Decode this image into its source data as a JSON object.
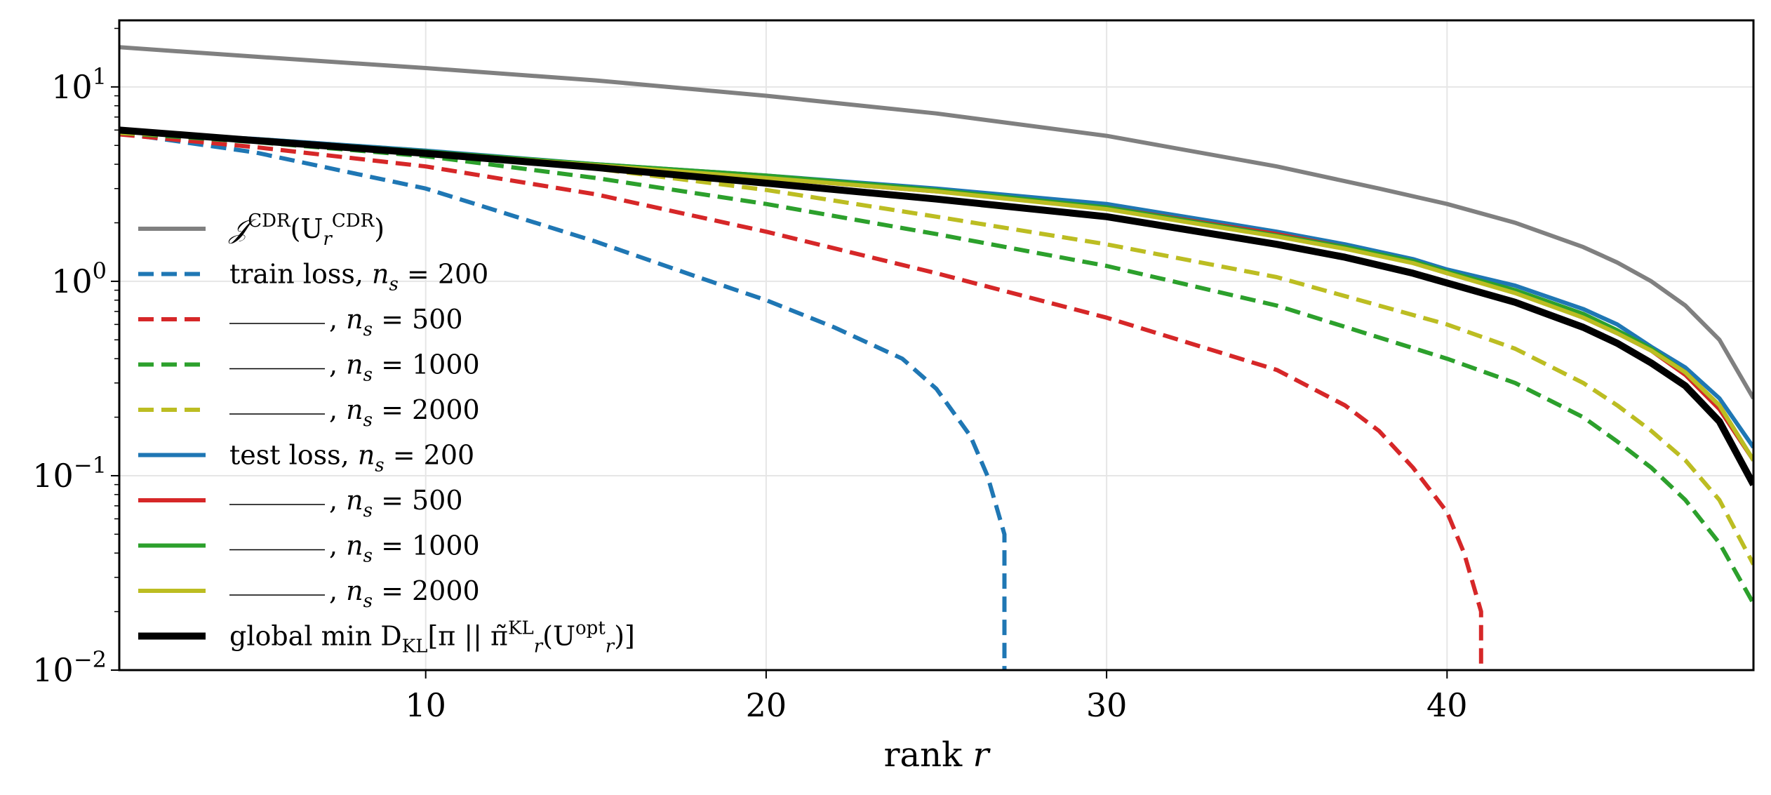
{
  "chart_data": {
    "type": "line",
    "title": "",
    "xlabel": "rank r",
    "ylabel": "",
    "y_scale": "log",
    "xlim": [
      1,
      49
    ],
    "ylim": [
      0.01,
      22
    ],
    "grid": true,
    "legend_position": "left",
    "x_ticks": [
      10,
      20,
      30,
      40
    ],
    "y_ticks": [
      {
        "value": 0.01,
        "base": "10",
        "exp": "−2"
      },
      {
        "value": 0.1,
        "base": "10",
        "exp": "−1"
      },
      {
        "value": 1,
        "base": "10",
        "exp": "0"
      },
      {
        "value": 10,
        "base": "10",
        "exp": "1"
      }
    ],
    "series": [
      {
        "name": "J^CDR(U_r^CDR)",
        "label_parts": [
          "𝒥",
          "CDR",
          "(U",
          "r",
          "CDR",
          ")"
        ],
        "color": "#808080",
        "style": "solid",
        "x": [
          1,
          5,
          10,
          15,
          20,
          25,
          30,
          35,
          38,
          40,
          42,
          44,
          45,
          46,
          47,
          48,
          49
        ],
        "y": [
          16,
          14.3,
          12.5,
          10.8,
          9.0,
          7.3,
          5.6,
          3.9,
          3.0,
          2.5,
          2.0,
          1.5,
          1.25,
          1.0,
          0.75,
          0.5,
          0.25
        ]
      },
      {
        "name": "train loss, n_s = 200",
        "color": "#1f77b4",
        "style": "dashed",
        "x": [
          1,
          5,
          10,
          15,
          18,
          20,
          22,
          24,
          25,
          26,
          26.5,
          27,
          27,
          27
        ],
        "y": [
          5.8,
          4.6,
          3.0,
          1.6,
          1.05,
          0.8,
          0.58,
          0.4,
          0.28,
          0.16,
          0.1,
          0.05,
          0.02,
          0.0095
        ]
      },
      {
        "name": "—, n_s = 500",
        "color": "#d62728",
        "style": "dashed",
        "x": [
          1,
          5,
          10,
          15,
          20,
          25,
          30,
          35,
          37,
          38,
          39,
          40,
          40.5,
          41,
          41,
          41
        ],
        "y": [
          5.7,
          4.9,
          3.9,
          2.8,
          1.8,
          1.1,
          0.65,
          0.35,
          0.23,
          0.17,
          0.11,
          0.065,
          0.04,
          0.02,
          0.012,
          0.0095
        ]
      },
      {
        "name": "—, n_s = 1000",
        "color": "#2ca02c",
        "style": "dashed",
        "x": [
          1,
          5,
          10,
          15,
          20,
          25,
          30,
          35,
          40,
          42,
          44,
          45,
          46,
          47,
          48,
          49
        ],
        "y": [
          5.8,
          5.2,
          4.4,
          3.4,
          2.5,
          1.75,
          1.2,
          0.75,
          0.4,
          0.3,
          0.2,
          0.15,
          0.11,
          0.075,
          0.045,
          0.022
        ]
      },
      {
        "name": "—, n_s = 2000",
        "color": "#bcbd22",
        "style": "dashed",
        "x": [
          1,
          5,
          10,
          15,
          20,
          25,
          30,
          35,
          40,
          42,
          44,
          45,
          46,
          47,
          48,
          49
        ],
        "y": [
          5.8,
          5.4,
          4.7,
          3.8,
          2.95,
          2.15,
          1.55,
          1.05,
          0.6,
          0.45,
          0.3,
          0.23,
          0.17,
          0.12,
          0.075,
          0.035
        ]
      },
      {
        "name": "test loss, n_s = 200",
        "color": "#1f77b4",
        "style": "solid",
        "x": [
          1,
          5,
          10,
          15,
          20,
          25,
          30,
          35,
          37,
          39,
          40,
          42,
          44,
          45,
          46,
          47,
          48,
          49
        ],
        "y": [
          5.9,
          5.4,
          4.7,
          4.0,
          3.5,
          3.0,
          2.5,
          1.8,
          1.55,
          1.3,
          1.15,
          0.95,
          0.72,
          0.6,
          0.46,
          0.36,
          0.25,
          0.14
        ]
      },
      {
        "name": "—, n_s = 500",
        "color": "#d62728",
        "style": "solid",
        "x": [
          1,
          5,
          10,
          15,
          20,
          25,
          30,
          35,
          37,
          39,
          40,
          42,
          44,
          45,
          46,
          47,
          48,
          49
        ],
        "y": [
          5.9,
          5.3,
          4.6,
          3.95,
          3.4,
          2.9,
          2.4,
          1.75,
          1.5,
          1.25,
          1.1,
          0.88,
          0.65,
          0.54,
          0.44,
          0.33,
          0.22,
          0.12
        ]
      },
      {
        "name": "—, n_s = 1000",
        "color": "#2ca02c",
        "style": "solid",
        "x": [
          1,
          5,
          10,
          15,
          20,
          25,
          30,
          35,
          37,
          39,
          40,
          42,
          44,
          45,
          46,
          47,
          48,
          49
        ],
        "y": [
          5.9,
          5.35,
          4.65,
          4.0,
          3.5,
          2.95,
          2.4,
          1.72,
          1.5,
          1.27,
          1.12,
          0.9,
          0.68,
          0.56,
          0.45,
          0.34,
          0.23,
          0.12
        ]
      },
      {
        "name": "—, n_s = 2000",
        "color": "#bcbd22",
        "style": "solid",
        "x": [
          1,
          5,
          10,
          15,
          20,
          25,
          30,
          35,
          37,
          39,
          40,
          42,
          44,
          45,
          46,
          47,
          48,
          49
        ],
        "y": [
          5.9,
          5.3,
          4.6,
          3.95,
          3.4,
          2.9,
          2.35,
          1.7,
          1.47,
          1.24,
          1.1,
          0.87,
          0.65,
          0.54,
          0.44,
          0.34,
          0.23,
          0.12
        ]
      },
      {
        "name": "global min D_KL[π || π̃_r^KL(U_r^opt)]",
        "color": "#000000",
        "style": "solid",
        "bold": true,
        "x": [
          1,
          5,
          10,
          15,
          20,
          25,
          30,
          35,
          37,
          39,
          40,
          42,
          44,
          45,
          46,
          47,
          48,
          49
        ],
        "y": [
          6.0,
          5.3,
          4.55,
          3.85,
          3.2,
          2.65,
          2.15,
          1.55,
          1.33,
          1.1,
          0.98,
          0.78,
          0.58,
          0.48,
          0.38,
          0.29,
          0.19,
          0.09
        ]
      }
    ],
    "legend": [
      {
        "prefix": "",
        "text": "𝒥",
        "sup": "CDR",
        "mid": "(U",
        "sub": "r",
        "sup2": "CDR",
        "tail": ")"
      },
      {
        "text": "train loss, n",
        "sub": "s",
        "tail": " = 200"
      },
      {
        "text": ", n",
        "sub": "s",
        "tail": " = 500",
        "dash_prefix": true
      },
      {
        "text": ", n",
        "sub": "s",
        "tail": " = 1000",
        "dash_prefix": true
      },
      {
        "text": ", n",
        "sub": "s",
        "tail": " = 2000",
        "dash_prefix": true
      },
      {
        "text": "test loss, n",
        "sub": "s",
        "tail": " = 200"
      },
      {
        "text": ", n",
        "sub": "s",
        "tail": " = 500",
        "dash_prefix": true
      },
      {
        "text": ", n",
        "sub": "s",
        "tail": " = 1000",
        "dash_prefix": true
      },
      {
        "text": ", n",
        "sub": "s",
        "tail": " = 2000",
        "dash_prefix": true
      },
      {
        "text": "global min D",
        "sub": "KL",
        "tail": "[π || π̃",
        "sup": "KL",
        "sub2": "r",
        "tail2": "(U",
        "sup3": "opt",
        "sub3": "r",
        "tail3": ")]"
      }
    ]
  }
}
